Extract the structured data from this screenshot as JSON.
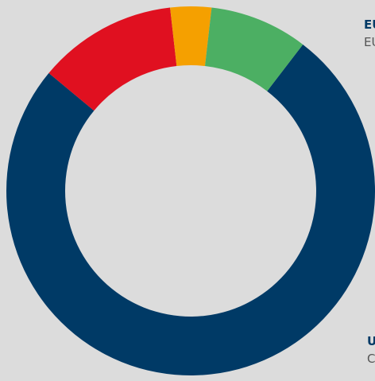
{
  "chart_data": {
    "type": "pie",
    "variant": "donut",
    "categories": [
      "",
      "",
      "",
      ""
    ],
    "values": [
      75.6,
      12.2,
      3.6,
      8.6
    ],
    "colors": [
      "#003a66",
      "#e01020",
      "#f5a000",
      "#4caf63"
    ]
  },
  "labels": {
    "top_right": {
      "title": "EU",
      "subtitle": "EU"
    },
    "bottom_right": {
      "title": "U",
      "subtitle": "C"
    }
  }
}
